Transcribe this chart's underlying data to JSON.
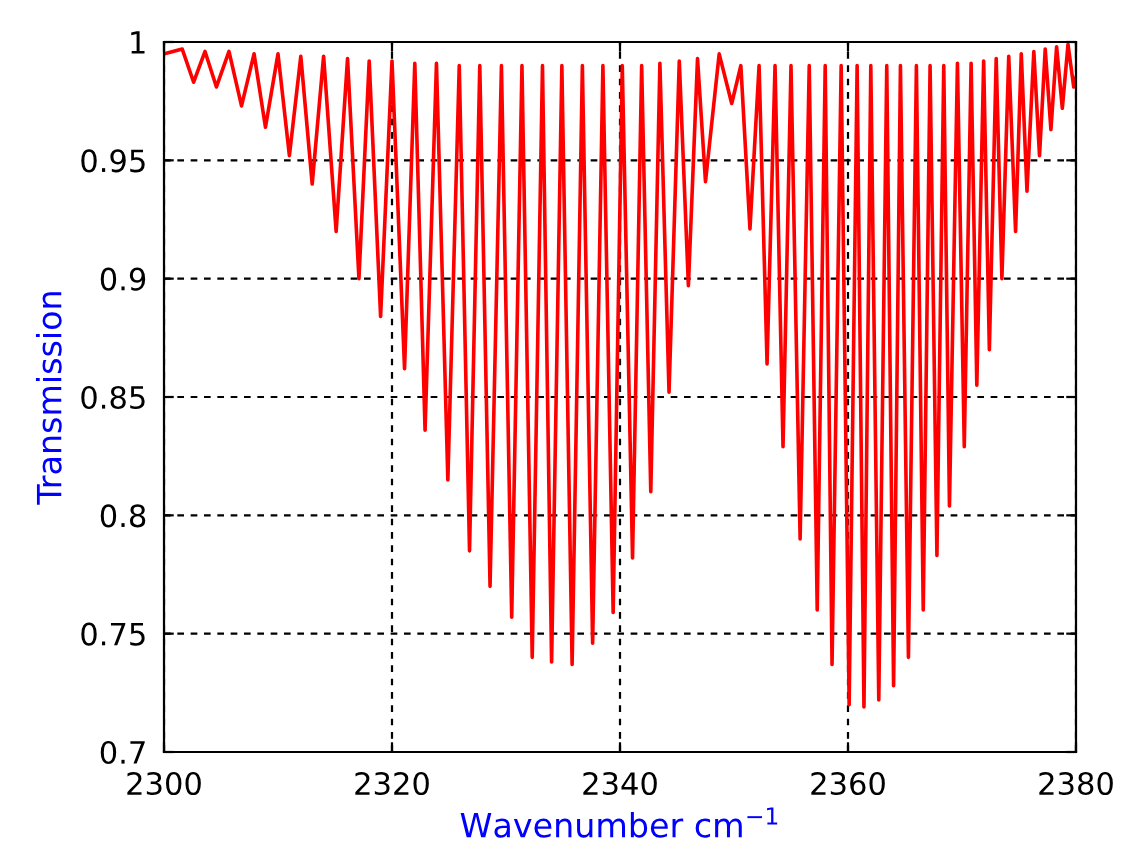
{
  "chart_data": {
    "type": "line",
    "xlabel": "Wavenumber cm$^{−1}$",
    "ylabel": "Transmission",
    "series": [
      {
        "color": "#ff0000",
        "x": [
          2300,
          2301.6,
          2302.6,
          2303.6,
          2304.6,
          2305.7,
          2306.8,
          2307.9,
          2308.9,
          2310.0,
          2311.0,
          2312.0,
          2313.0,
          2314.0,
          2315.1,
          2316.1,
          2317.1,
          2318.0,
          2319.0,
          2320.0,
          2321.1,
          2322.0,
          2322.9,
          2323.9,
          2324.9,
          2325.9,
          2326.8,
          2327.7,
          2328.6,
          2329.6,
          2330.5,
          2331.4,
          2332.3,
          2333.2,
          2334.0,
          2334.9,
          2335.8,
          2336.7,
          2337.6,
          2338.5,
          2339.4,
          2340.2,
          2341.1,
          2341.9,
          2342.7,
          2343.5,
          2344.3,
          2345.2,
          2346.0,
          2346.8,
          2347.5,
          2348.7,
          2349.8,
          2350.6,
          2351.4,
          2352.2,
          2352.9,
          2353.6,
          2354.3,
          2355.0,
          2355.8,
          2356.6,
          2357.3,
          2358.0,
          2358.6,
          2359.4,
          2360.1,
          2360.8,
          2361.4,
          2362.0,
          2362.7,
          2363.4,
          2364.0,
          2364.6,
          2365.3,
          2366.0,
          2366.6,
          2367.2,
          2367.8,
          2368.4,
          2368.9,
          2369.6,
          2370.2,
          2370.8,
          2371.3,
          2371.9,
          2372.4,
          2373.0,
          2373.5,
          2374.1,
          2374.7,
          2375.2,
          2375.7,
          2376.3,
          2376.8,
          2377.3,
          2377.8,
          2378.3,
          2378.8,
          2379.3,
          2379.8,
          2380
        ],
        "values": [
          0.995,
          0.997,
          0.983,
          0.996,
          0.981,
          0.996,
          0.973,
          0.995,
          0.964,
          0.995,
          0.952,
          0.994,
          0.94,
          0.994,
          0.92,
          0.993,
          0.9,
          0.992,
          0.884,
          0.992,
          0.862,
          0.991,
          0.836,
          0.991,
          0.815,
          0.99,
          0.785,
          0.99,
          0.77,
          0.99,
          0.757,
          0.99,
          0.74,
          0.99,
          0.738,
          0.99,
          0.737,
          0.99,
          0.746,
          0.99,
          0.759,
          0.99,
          0.782,
          0.99,
          0.81,
          0.991,
          0.852,
          0.992,
          0.897,
          0.993,
          0.941,
          0.995,
          0.974,
          0.99,
          0.921,
          0.99,
          0.864,
          0.99,
          0.829,
          0.99,
          0.79,
          0.99,
          0.76,
          0.99,
          0.737,
          0.99,
          0.72,
          0.99,
          0.719,
          0.99,
          0.722,
          0.99,
          0.728,
          0.99,
          0.74,
          0.99,
          0.76,
          0.99,
          0.783,
          0.99,
          0.804,
          0.991,
          0.829,
          0.991,
          0.855,
          0.992,
          0.87,
          0.993,
          0.9,
          0.994,
          0.92,
          0.995,
          0.937,
          0.996,
          0.952,
          0.997,
          0.963,
          0.998,
          0.972,
          0.999,
          0.981,
          0.985
        ]
      }
    ],
    "xlim": [
      2300,
      2380
    ],
    "xticks": [
      2300,
      2320,
      2340,
      2360,
      2380
    ],
    "ylim": [
      0.7,
      1
    ],
    "yticks": [
      0.7,
      0.75,
      0.8,
      0.85,
      0.9,
      0.95,
      1
    ],
    "grid": true,
    "line_style": "solid",
    "marker": "none"
  }
}
